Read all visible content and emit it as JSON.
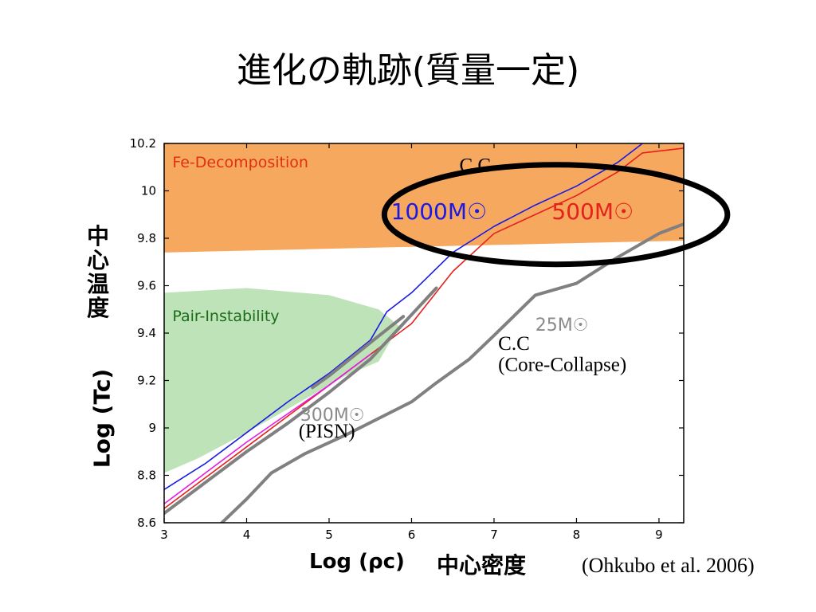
{
  "slide": {
    "title": "進化の軌跡(質量一定)",
    "citation": "(Ohkubo et al. 2006)"
  },
  "axis_labels": {
    "y_japanese": "中心温度",
    "y_english": "Log (Tc)",
    "x_english": "Log (ρc)",
    "x_japanese": "中心密度"
  },
  "chart_data": {
    "type": "line",
    "xlim": [
      3,
      9.3
    ],
    "ylim": [
      8.6,
      10.2
    ],
    "x_ticks": [
      3,
      4,
      5,
      6,
      7,
      8,
      9
    ],
    "y_ticks": [
      8.6,
      8.8,
      9,
      9.2,
      9.4,
      9.6,
      9.8,
      10,
      10.2
    ],
    "y_tick_labels": [
      "8.6",
      "8.8",
      "9",
      "9.2",
      "9.4",
      "9.6",
      "9.8",
      "10",
      "10.2"
    ],
    "grid": false,
    "regions": [
      {
        "name": "Fe-Decomposition",
        "color": "#f7a85f",
        "label_color": "#e03010",
        "label_at": [
          3.1,
          10.1
        ],
        "polygon": [
          [
            3,
            10.2
          ],
          [
            9.3,
            10.2
          ],
          [
            9.3,
            9.79
          ],
          [
            3,
            9.74
          ]
        ]
      },
      {
        "name": "Pair-Instability",
        "color": "#bfe3b8",
        "label_color": "#1a6b1a",
        "label_at": [
          3.1,
          9.45
        ],
        "polygon": [
          [
            3,
            9.57
          ],
          [
            4,
            9.59
          ],
          [
            5,
            9.56
          ],
          [
            5.6,
            9.5
          ],
          [
            5.85,
            9.43
          ],
          [
            5.6,
            9.28
          ],
          [
            5.2,
            9.22
          ],
          [
            4.6,
            9.1
          ],
          [
            4,
            8.98
          ],
          [
            3.4,
            8.87
          ],
          [
            3,
            8.81
          ]
        ]
      }
    ],
    "series": [
      {
        "name": "1000M☉",
        "color": "#1a1ae6",
        "width": 1.6,
        "label_color": "#1a1ae6",
        "label_at": [
          5.75,
          9.88
        ],
        "points": [
          [
            3,
            8.74
          ],
          [
            3.5,
            8.85
          ],
          [
            4,
            8.98
          ],
          [
            4.5,
            9.11
          ],
          [
            5,
            9.23
          ],
          [
            5.5,
            9.37
          ],
          [
            5.7,
            9.49
          ],
          [
            6,
            9.57
          ],
          [
            6.5,
            9.74
          ],
          [
            7,
            9.85
          ],
          [
            7.5,
            9.94
          ],
          [
            8,
            10.02
          ],
          [
            8.5,
            10.12
          ],
          [
            8.8,
            10.2
          ]
        ]
      },
      {
        "name": "500M☉",
        "color": "#e6201a",
        "width": 1.6,
        "label_color": "#e6201a",
        "label_at": [
          7.7,
          9.88
        ],
        "points": [
          [
            3,
            8.66
          ],
          [
            3.5,
            8.79
          ],
          [
            4,
            8.92
          ],
          [
            4.5,
            9.05
          ],
          [
            5,
            9.18
          ],
          [
            5.5,
            9.31
          ],
          [
            6,
            9.44
          ],
          [
            6.5,
            9.66
          ],
          [
            7,
            9.82
          ],
          [
            7.5,
            9.9
          ],
          [
            8,
            9.98
          ],
          [
            8.5,
            10.08
          ],
          [
            8.8,
            10.16
          ],
          [
            9.3,
            10.18
          ]
        ]
      },
      {
        "name": "",
        "color": "#e619e6",
        "width": 1.6,
        "points": [
          [
            3,
            8.68
          ],
          [
            3.5,
            8.81
          ],
          [
            4,
            8.94
          ],
          [
            4.5,
            9.06
          ],
          [
            5,
            9.18
          ],
          [
            5.5,
            9.31
          ]
        ]
      },
      {
        "name": "300M☉",
        "color": "#808080",
        "width": 4,
        "label_color": "#8a8a8a",
        "label_at": [
          4.65,
          9.03
        ],
        "points": [
          [
            3,
            8.64
          ],
          [
            3.5,
            8.77
          ],
          [
            4,
            8.9
          ],
          [
            4.5,
            9.02
          ],
          [
            5,
            9.15
          ],
          [
            5.5,
            9.29
          ],
          [
            6.3,
            9.59
          ]
        ]
      },
      {
        "name": "",
        "color": "#808080",
        "width": 4,
        "points": [
          [
            4.8,
            9.17
          ],
          [
            5,
            9.22
          ],
          [
            5.5,
            9.36
          ],
          [
            5.9,
            9.47
          ]
        ]
      },
      {
        "name": "25M☉",
        "color": "#808080",
        "width": 4,
        "label_color": "#8a8a8a",
        "label_at": [
          7.5,
          9.41
        ],
        "points": [
          [
            3.7,
            8.6
          ],
          [
            4,
            8.7
          ],
          [
            4.3,
            8.81
          ],
          [
            4.7,
            8.89
          ],
          [
            5.2,
            8.97
          ],
          [
            5.6,
            9.04
          ],
          [
            6,
            9.11
          ],
          [
            6.3,
            9.19
          ],
          [
            6.7,
            9.29
          ],
          [
            7,
            9.39
          ],
          [
            7.5,
            9.56
          ],
          [
            8,
            9.61
          ],
          [
            8.5,
            9.72
          ],
          [
            9,
            9.82
          ],
          [
            9.3,
            9.86
          ]
        ]
      }
    ],
    "annotations": [
      {
        "text": "C.C",
        "at": [
          6.58,
          10.08
        ]
      },
      {
        "text": "C.C",
        "at": [
          7.05,
          9.33
        ]
      },
      {
        "text": "(Core-Collapse)",
        "at": [
          7.05,
          9.24
        ]
      },
      {
        "text": "(PISN)",
        "at": [
          4.63,
          8.96
        ]
      }
    ],
    "highlight_ellipse": {
      "center": [
        7.75,
        9.9
      ],
      "rx": 2.08,
      "ry": 0.21
    }
  }
}
